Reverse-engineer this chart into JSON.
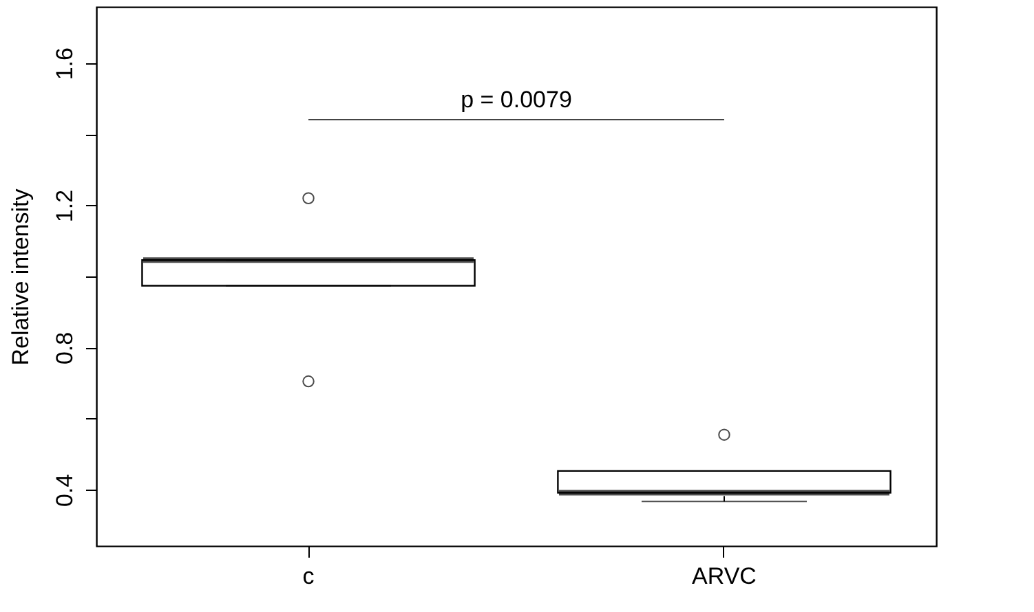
{
  "chart_data": {
    "type": "box",
    "ylabel": "Relative intensity",
    "categories": [
      "c",
      "ARVC"
    ],
    "boxes": [
      {
        "low": 0.974,
        "q1": 0.974,
        "median": 1.046,
        "q3": 1.046,
        "high": 1.046,
        "outliers": [
          1.22,
          0.705
        ]
      },
      {
        "low": 0.367,
        "q1": 0.392,
        "median": 0.392,
        "q3": 0.453,
        "high": 0.453,
        "outliers": [
          0.555
        ]
      }
    ],
    "ylim": [
      0.242,
      1.758
    ],
    "yticks": [
      0.4,
      {
        "value": 0.6,
        "label": null
      },
      0.8,
      {
        "value": 1.0,
        "label": null
      },
      1.2,
      {
        "value": 1.4,
        "label": null
      },
      1.6
    ],
    "grid": false,
    "annotations": [
      "p = 0.0079"
    ]
  }
}
